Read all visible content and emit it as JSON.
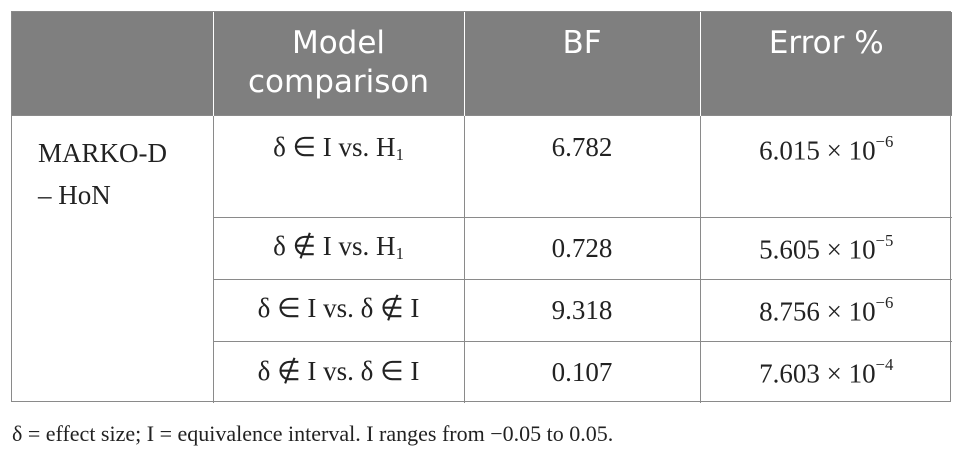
{
  "table": {
    "headers": [
      "",
      "Model\ncomparison",
      "BF",
      "Error %"
    ],
    "group_label": "MARKO-D\n– HoN",
    "rows": [
      {
        "comparison": {
          "pre": "δ ∈ I vs. H",
          "sub": "1",
          "post": ""
        },
        "bf": "6.782",
        "error": {
          "mantissa": "6.015 × 10",
          "exponent": "−6"
        }
      },
      {
        "comparison": {
          "pre": "δ ∉ I vs. H",
          "sub": "1",
          "post": ""
        },
        "bf": "0.728",
        "error": {
          "mantissa": "5.605 × 10",
          "exponent": "−5"
        }
      },
      {
        "comparison": {
          "pre": "δ ∈ I vs. δ ∉ I",
          "sub": "",
          "post": ""
        },
        "bf": "9.318",
        "error": {
          "mantissa": "8.756 × 10",
          "exponent": "−6"
        }
      },
      {
        "comparison": {
          "pre": "δ ∉ I vs. δ ∈ I",
          "sub": "",
          "post": ""
        },
        "bf": "0.107",
        "error": {
          "mantissa": "7.603 × 10",
          "exponent": "−4"
        }
      }
    ]
  },
  "footnote": "δ = effect size; I = equivalence interval. I ranges from −0.05 to 0.05."
}
